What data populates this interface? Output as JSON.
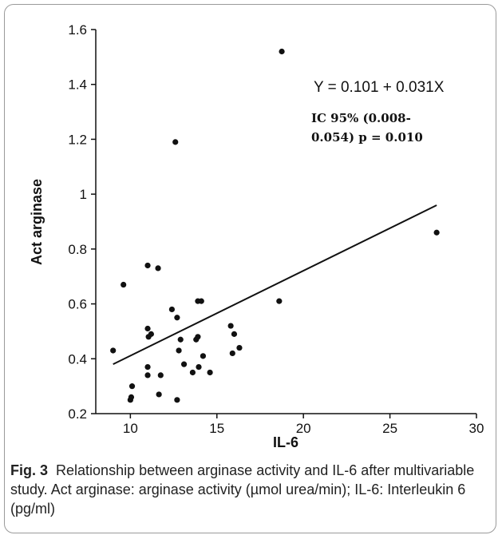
{
  "chart_data": {
    "type": "scatter",
    "xlabel": "IL-6",
    "ylabel": "Act arginase",
    "xlim": [
      8,
      30
    ],
    "ylim": [
      0.2,
      1.6
    ],
    "xticks": [
      "10",
      "15",
      "20",
      "25",
      "30"
    ],
    "yticks": [
      "0.2",
      "0.4",
      "0.6",
      "0.8",
      "1",
      "1.2",
      "1.4",
      "1.6"
    ],
    "grid": false,
    "regression": {
      "intercept": 0.101,
      "slope": 0.031,
      "x_range": [
        9,
        27.7
      ]
    },
    "annotations": {
      "equation": "Y = 0.101 + 0.031X",
      "ci_line1": "IC 95% (0.008-",
      "ci_line2": "0.054)  p = 0.010"
    },
    "points": [
      {
        "x": 9.0,
        "y": 0.43
      },
      {
        "x": 9.6,
        "y": 0.67
      },
      {
        "x": 10.0,
        "y": 0.25
      },
      {
        "x": 10.05,
        "y": 0.26
      },
      {
        "x": 10.1,
        "y": 0.3
      },
      {
        "x": 11.0,
        "y": 0.74
      },
      {
        "x": 11.0,
        "y": 0.51
      },
      {
        "x": 11.05,
        "y": 0.48
      },
      {
        "x": 11.2,
        "y": 0.49
      },
      {
        "x": 11.0,
        "y": 0.37
      },
      {
        "x": 11.0,
        "y": 0.34
      },
      {
        "x": 11.6,
        "y": 0.73
      },
      {
        "x": 11.65,
        "y": 0.27
      },
      {
        "x": 11.75,
        "y": 0.34
      },
      {
        "x": 12.4,
        "y": 0.58
      },
      {
        "x": 12.6,
        "y": 1.19
      },
      {
        "x": 12.7,
        "y": 0.55
      },
      {
        "x": 12.7,
        "y": 0.25
      },
      {
        "x": 12.8,
        "y": 0.43
      },
      {
        "x": 12.9,
        "y": 0.47
      },
      {
        "x": 13.1,
        "y": 0.38
      },
      {
        "x": 13.6,
        "y": 0.35
      },
      {
        "x": 13.8,
        "y": 0.47
      },
      {
        "x": 13.9,
        "y": 0.48
      },
      {
        "x": 13.9,
        "y": 0.61
      },
      {
        "x": 14.1,
        "y": 0.61
      },
      {
        "x": 13.95,
        "y": 0.37
      },
      {
        "x": 14.2,
        "y": 0.41
      },
      {
        "x": 14.6,
        "y": 0.35
      },
      {
        "x": 15.8,
        "y": 0.52
      },
      {
        "x": 15.9,
        "y": 0.42
      },
      {
        "x": 16.0,
        "y": 0.49
      },
      {
        "x": 16.3,
        "y": 0.44
      },
      {
        "x": 18.6,
        "y": 0.61
      },
      {
        "x": 18.75,
        "y": 1.52
      },
      {
        "x": 27.7,
        "y": 0.86
      }
    ]
  },
  "caption": {
    "label": "Fig. 3",
    "text": "Relationship between arginase activity and IL-6 after multivariable study. Act arginase: arginase activity (µmol urea/min); IL-6: Interleukin 6 (pg/ml)"
  }
}
